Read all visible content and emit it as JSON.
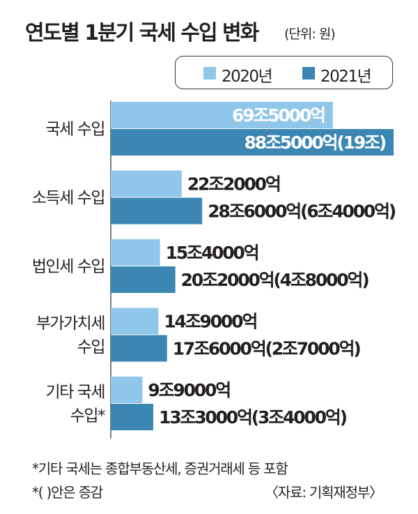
{
  "title": "연도별 1분기 국세 수입 변화",
  "unit": "(단위: 원)",
  "footnote": "*기타 국세는 종합부동산세, 증권거래세 등 포함",
  "note": "*( )안은 증감",
  "source": "〈자료: 기획재정부〉",
  "colors": {
    "y2020": "#8fc6ea",
    "y2021": "#3b86b3"
  },
  "chart_data": {
    "type": "bar",
    "orientation": "horizontal",
    "unit": "원",
    "categories": [
      [
        "국세 수입"
      ],
      [
        "소득세 수입"
      ],
      [
        "법인세 수입"
      ],
      [
        "부가가치세",
        "수입"
      ],
      [
        "기타 국세",
        "수입*"
      ]
    ],
    "series": [
      {
        "name": "2020년",
        "values": [
          695000,
          222000,
          154000,
          149000,
          99000
        ],
        "labels": [
          "69조5000억",
          "22조2000억",
          "15조4000억",
          "14조9000억",
          "9조9000억"
        ]
      },
      {
        "name": "2021년",
        "values": [
          885000,
          286000,
          202000,
          176000,
          133000
        ],
        "labels": [
          "88조5000억(19조)",
          "28조6000억(6조4000억)",
          "20조2000억(4조8000억)",
          "17조6000억(2조7000억)",
          "13조3000억(3조4000억)"
        ]
      }
    ],
    "value_unit": "억원",
    "legend_position": "top-right"
  }
}
